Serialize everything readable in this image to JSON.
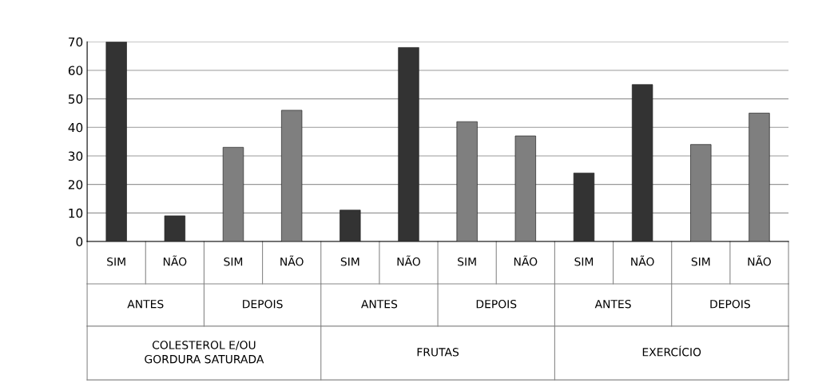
{
  "chart_data": {
    "type": "bar",
    "categories": [
      "SIM",
      "NÃO",
      "SIM",
      "NÃO",
      "SIM",
      "NÃO",
      "SIM",
      "NÃO",
      "SIM",
      "NÃO",
      "SIM",
      "NÃO"
    ],
    "values": [
      70,
      9,
      33,
      46,
      11,
      68,
      42,
      37,
      24,
      55,
      34,
      45
    ],
    "colors": [
      "#333333",
      "#333333",
      "#7f7f7f",
      "#7f7f7f",
      "#333333",
      "#333333",
      "#7f7f7f",
      "#7f7f7f",
      "#333333",
      "#333333",
      "#7f7f7f",
      "#7f7f7f"
    ],
    "ylim": [
      0,
      70
    ],
    "yticks": [
      0,
      10,
      20,
      30,
      40,
      50,
      60,
      70
    ],
    "grid": "y",
    "annotations": [
      "ANTES",
      "DEPOIS",
      "ANTES",
      "DEPOIS",
      "ANTES",
      "DEPOIS",
      "COLESTEROL E/OU\nGORDURA SATURADA",
      "FRUTAS",
      "EXERCÍCIO"
    ]
  }
}
